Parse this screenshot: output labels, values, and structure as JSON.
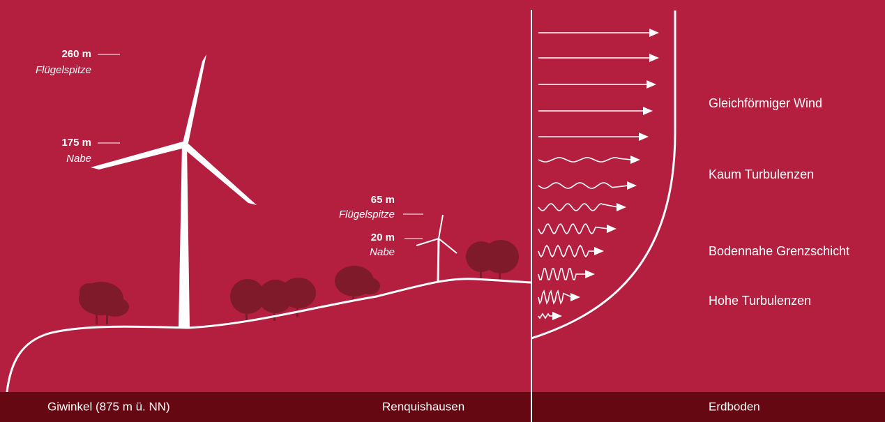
{
  "turbines": [
    {
      "tip_height": "260 m",
      "tip_label": "Flügelspitze",
      "hub_height": "175 m",
      "hub_label": "Nabe"
    },
    {
      "tip_height": "65 m",
      "tip_label": "Flügelspitze",
      "hub_height": "20 m",
      "hub_label": "Nabe"
    }
  ],
  "layers": [
    "Gleichförmiger Wind",
    "Kaum Turbulenzen",
    "Bodennahe Grenzschicht",
    "Hohe Turbulenzen"
  ],
  "footer": {
    "left": "Giwinkel (875 m ü. NN)",
    "middle": "Renquishausen",
    "right": "Erdboden"
  }
}
